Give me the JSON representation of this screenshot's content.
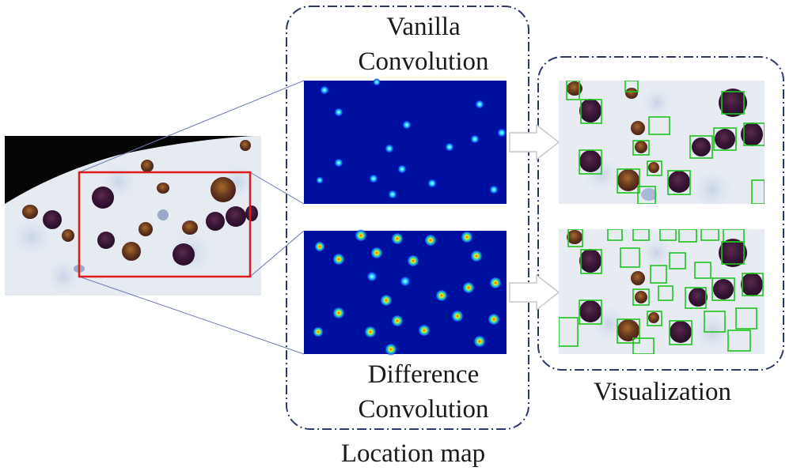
{
  "labels": {
    "vanilla_line1": "Vanilla",
    "vanilla_line2": "Convolution",
    "difference_line1": "Difference",
    "difference_line2": "Convolution",
    "location_map": "Location map",
    "visualization": "Visualization"
  },
  "colors": {
    "panel_border": "#2b3a66",
    "zoom_box": "#e01b1b",
    "zoom_lines": "#6b7db3",
    "heatmap_bg": "#00109e",
    "detection_box": "#1fc41f",
    "arrow": "#d8d8d8"
  },
  "images": {
    "source": "histology-tissue-sample",
    "vanilla_map": "vanilla-convolution-location-map",
    "difference_map": "difference-convolution-location-map",
    "vanilla_vis": "vanilla-detection-visualization",
    "difference_vis": "difference-detection-visualization"
  }
}
